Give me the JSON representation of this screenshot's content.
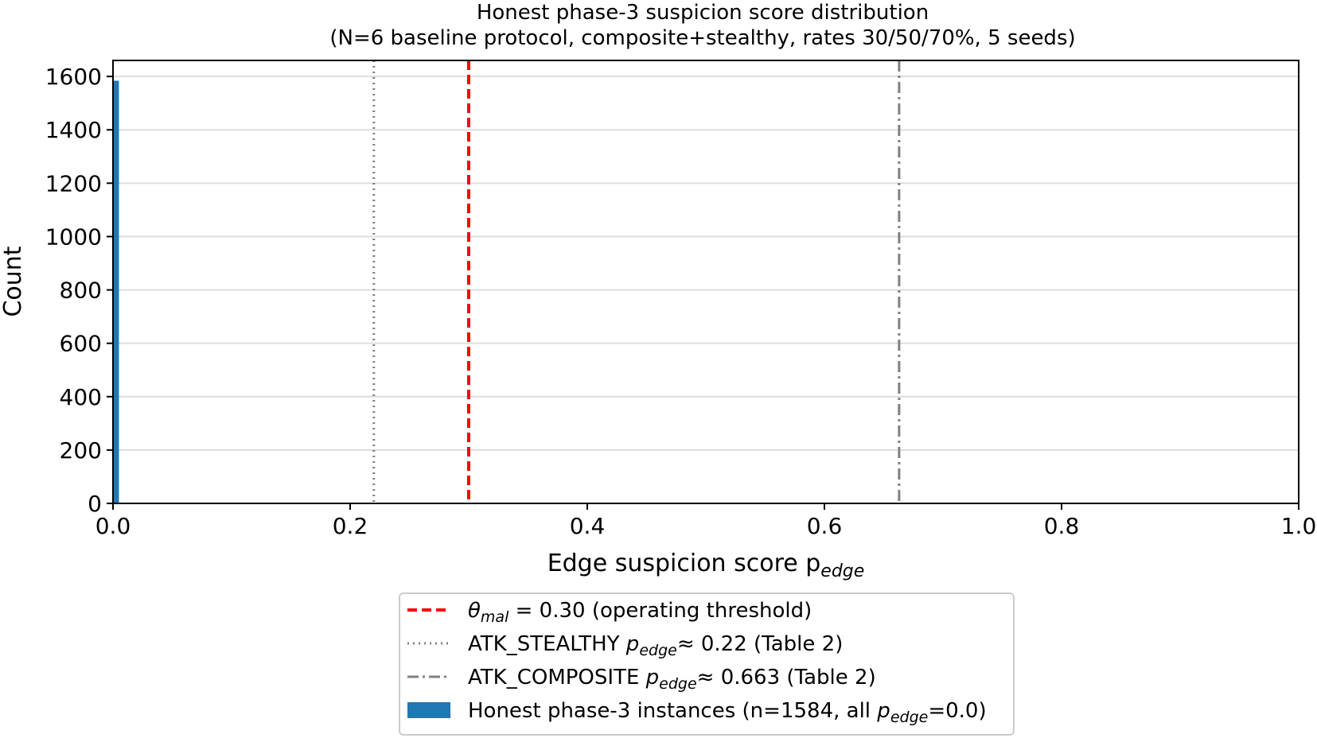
{
  "chart_data": {
    "type": "bar",
    "title": "Honest phase-3 suspicion score distribution",
    "subtitle": "(N=6 baseline protocol, composite+stealthy, rates 30/50/70%, 5 seeds)",
    "xlabel": "Edge suspicion score p",
    "xlabel_sub": "edge",
    "ylabel": "Count",
    "xlim": [
      0.0,
      1.0
    ],
    "ylim": [
      0,
      1660
    ],
    "x_ticks": [
      "0.0",
      "0.2",
      "0.4",
      "0.6",
      "0.8",
      "1.0"
    ],
    "y_ticks": [
      "0",
      "200",
      "400",
      "600",
      "800",
      "1000",
      "1200",
      "1400",
      "1600"
    ],
    "grid": "horizontal",
    "bars": [
      {
        "x_start": 0.0,
        "x_end": 0.005,
        "count": 1584
      }
    ],
    "reference_lines": [
      {
        "x": 0.22,
        "style": "dotted",
        "color": "#808080"
      },
      {
        "x": 0.3,
        "style": "dashed",
        "color": "#ff0000"
      },
      {
        "x": 0.663,
        "style": "dashdot",
        "color": "#808080"
      }
    ],
    "bar_color": "#1f77b4",
    "legend": {
      "position": "below-center",
      "entries": [
        {
          "sym": "θ",
          "sub": "mal",
          "text": " = 0.30 (operating threshold)"
        },
        {
          "pre": "ATK_STEALTHY ",
          "sym": "p",
          "sub": "edge",
          "text": "≈  0.22 (Table 2)"
        },
        {
          "pre": "ATK_COMPOSITE ",
          "sym": "p",
          "sub": "edge",
          "text": "≈  0.663 (Table 2)"
        },
        {
          "pre": "Honest phase-3 instances (n=1584, all ",
          "sym": "p",
          "sub": "edge",
          "text": "=0.0)"
        }
      ]
    }
  }
}
